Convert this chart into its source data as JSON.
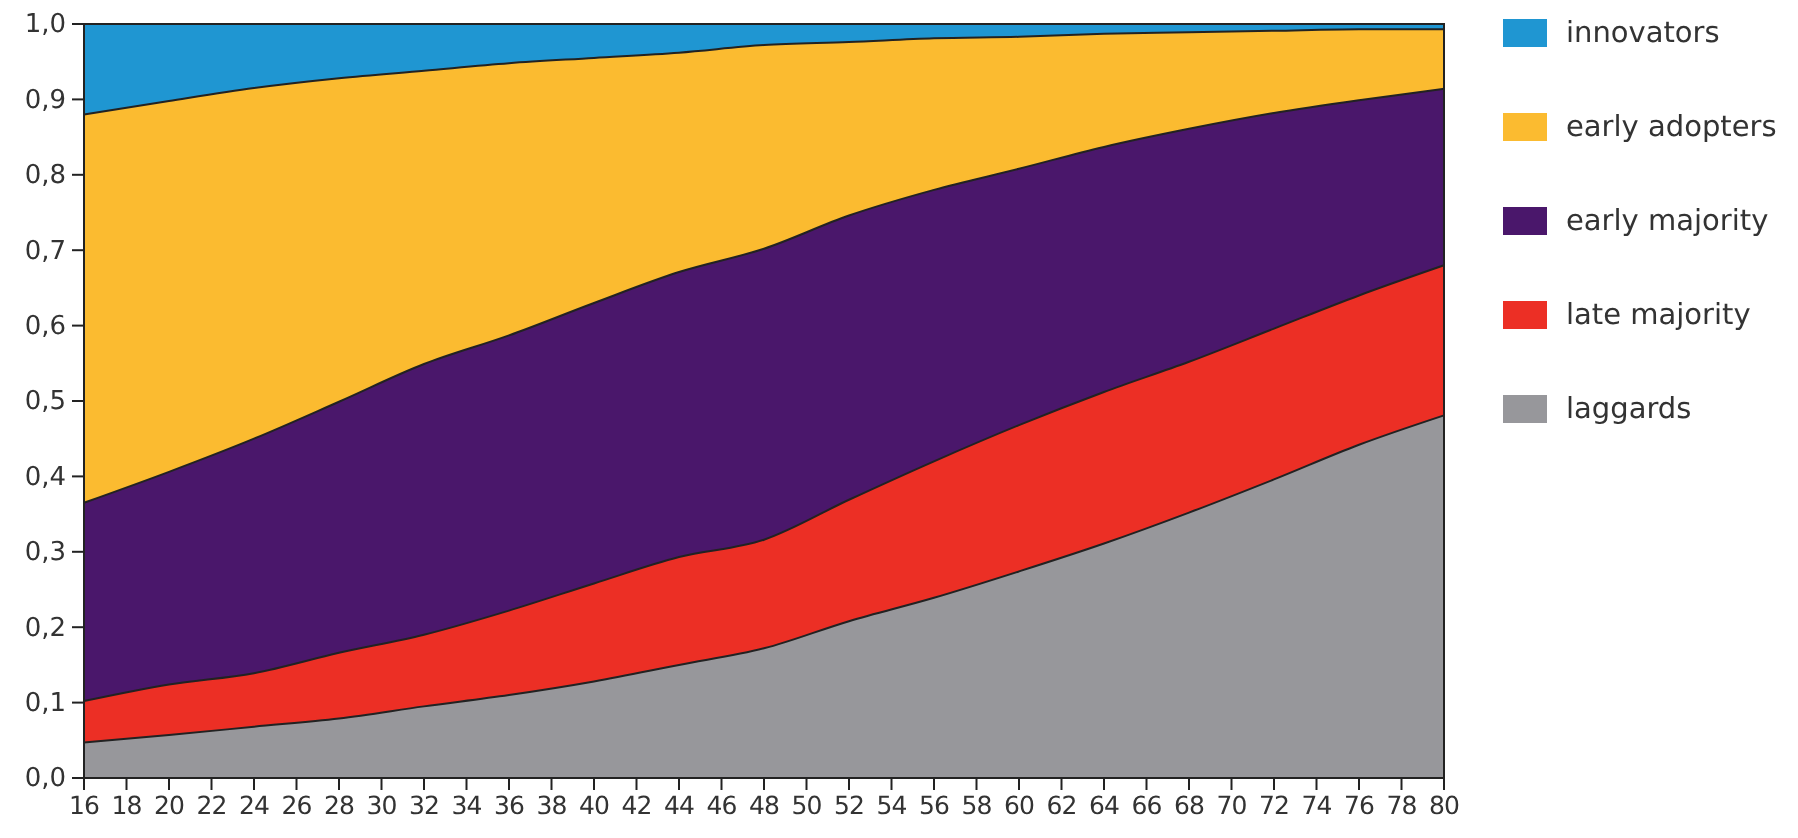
{
  "chart_data": {
    "type": "area",
    "stacked": true,
    "x": [
      16,
      20,
      24,
      28,
      32,
      36,
      40,
      44,
      48,
      52,
      56,
      60,
      64,
      68,
      72,
      76,
      80
    ],
    "series": [
      {
        "name": "laggards",
        "color": "#97979b",
        "values": [
          0.047,
          0.057,
          0.068,
          0.079,
          0.095,
          0.11,
          0.128,
          0.15,
          0.172,
          0.208,
          0.239,
          0.274,
          0.311,
          0.352,
          0.396,
          0.442,
          0.481
        ]
      },
      {
        "name": "late majority",
        "color": "#ec2f25",
        "values": [
          0.055,
          0.067,
          0.071,
          0.087,
          0.095,
          0.112,
          0.13,
          0.143,
          0.144,
          0.161,
          0.181,
          0.194,
          0.201,
          0.2,
          0.2,
          0.198,
          0.199
        ]
      },
      {
        "name": "early majority",
        "color": "#4a176b",
        "values": [
          0.263,
          0.282,
          0.311,
          0.333,
          0.359,
          0.365,
          0.372,
          0.378,
          0.386,
          0.377,
          0.36,
          0.34,
          0.325,
          0.309,
          0.286,
          0.259,
          0.234
        ]
      },
      {
        "name": "early adopters",
        "color": "#fbbb30",
        "values": [
          0.515,
          0.492,
          0.465,
          0.429,
          0.389,
          0.361,
          0.325,
          0.291,
          0.27,
          0.23,
          0.201,
          0.175,
          0.15,
          0.128,
          0.109,
          0.094,
          0.079
        ]
      },
      {
        "name": "innovators",
        "color": "#1f96d2",
        "values": [
          0.12,
          0.102,
          0.085,
          0.072,
          0.062,
          0.052,
          0.045,
          0.038,
          0.028,
          0.024,
          0.019,
          0.017,
          0.013,
          0.011,
          0.009,
          0.007,
          0.007
        ]
      }
    ],
    "xlim": [
      16,
      80
    ],
    "xticks": [
      16,
      18,
      20,
      22,
      24,
      26,
      28,
      30,
      32,
      34,
      36,
      38,
      40,
      42,
      44,
      46,
      48,
      50,
      52,
      54,
      56,
      58,
      60,
      62,
      64,
      66,
      68,
      70,
      72,
      74,
      76,
      78,
      80
    ],
    "ylim": [
      0,
      1
    ],
    "yticks": [
      {
        "value": 0,
        "label": "0,0"
      },
      {
        "value": 0.1,
        "label": "0,1"
      },
      {
        "value": 0.2,
        "label": "0,2"
      },
      {
        "value": 0.3,
        "label": "0,3"
      },
      {
        "value": 0.4,
        "label": "0,4"
      },
      {
        "value": 0.5,
        "label": "0,5"
      },
      {
        "value": 0.6,
        "label": "0,6"
      },
      {
        "value": 0.7,
        "label": "0,7"
      },
      {
        "value": 0.8,
        "label": "0,8"
      },
      {
        "value": 0.9,
        "label": "0,9"
      },
      {
        "value": 1,
        "label": "1,0"
      }
    ],
    "legend": "right",
    "grid": false
  }
}
